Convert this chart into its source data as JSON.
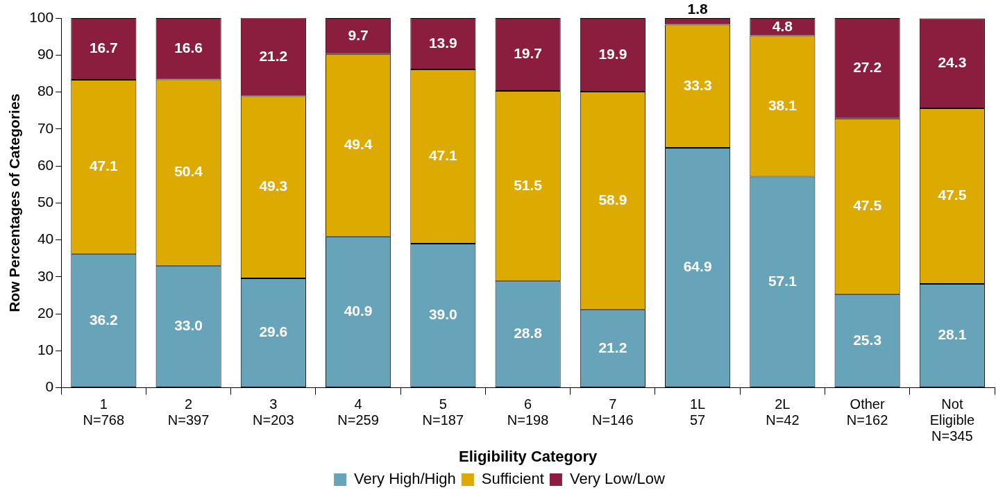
{
  "chart_data": {
    "type": "bar",
    "stacked": true,
    "xlabel": "Eligibility Category",
    "ylabel": "Row Percentages of Categories",
    "categories": [
      "1\nN=768",
      "2\nN=397",
      "3\nN=203",
      "4\nN=259",
      "5\nN=187",
      "6\nN=198",
      "7\nN=146",
      "1L\n57",
      "2L\nN=42",
      "Other\nN=162",
      "Not\nEligible\nN=345"
    ],
    "series": [
      {
        "name": "Very High/High",
        "color": "#67a3b9",
        "values": [
          36.2,
          33.0,
          29.6,
          40.9,
          39.0,
          28.8,
          21.2,
          64.9,
          57.1,
          25.3,
          28.1
        ],
        "value_labels": [
          "36.2",
          "33.0",
          "29.6",
          "40.9",
          "39.0",
          "28.8",
          "21.2",
          "64.9",
          "57.1",
          "25.3",
          "28.1"
        ]
      },
      {
        "name": "Sufficient",
        "color": "#dcaa00",
        "values": [
          47.1,
          50.4,
          49.3,
          49.4,
          47.1,
          51.5,
          58.9,
          33.3,
          38.1,
          47.5,
          47.5
        ],
        "value_labels": [
          "47.1",
          "50.4",
          "49.3",
          "49.4",
          "47.1",
          "51.5",
          "58.9",
          "33.3",
          "38.1",
          "47.5",
          "47.5"
        ]
      },
      {
        "name": "Very Low/Low",
        "color": "#8b1e3f",
        "values": [
          16.7,
          16.6,
          21.2,
          9.7,
          13.9,
          19.7,
          19.9,
          1.8,
          4.8,
          27.2,
          24.3
        ],
        "value_labels": [
          "16.7",
          "16.6",
          "21.2",
          "9.7",
          "13.9",
          "19.7",
          "19.9",
          "1.8",
          "4.8",
          "27.2",
          "24.3"
        ]
      }
    ],
    "ylim": [
      0,
      100
    ],
    "yticks": [
      0,
      10,
      20,
      30,
      40,
      50,
      60,
      70,
      80,
      90,
      100
    ],
    "grid": false,
    "legend": "bottom"
  }
}
